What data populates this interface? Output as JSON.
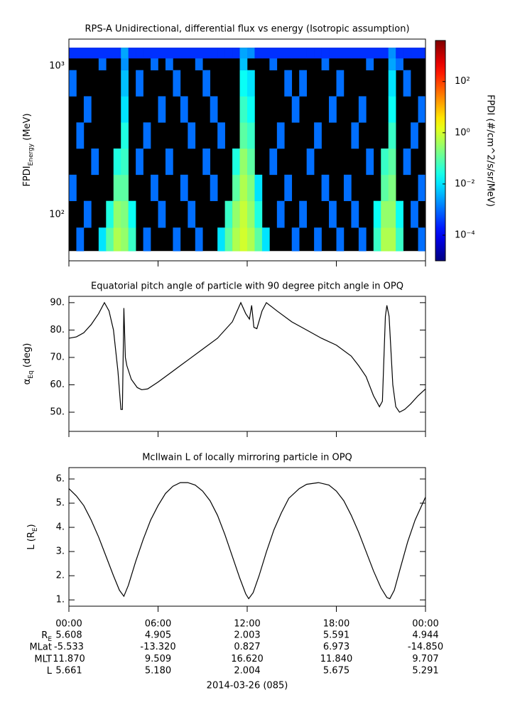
{
  "chart_data": [
    {
      "type": "heatmap",
      "title": "RPS-A Unidirectional, differential flux vs energy (Isotropic assumption)",
      "ylabel": [
        {
          "text": "FPDI"
        },
        {
          "text": "Energy",
          "sub": true
        },
        {
          "text": " (MeV)"
        }
      ],
      "xlim": [
        0,
        24
      ],
      "xticks": [
        0,
        6,
        12,
        18,
        24
      ],
      "ylim": [
        49,
        1520
      ],
      "ylog": true,
      "yticks": [
        {
          "value": 100,
          "label": "10²"
        },
        {
          "value": 1000,
          "label": "10³"
        }
      ],
      "xbins": [
        0,
        0.5,
        1,
        1.5,
        2,
        2.5,
        3,
        3.5,
        4,
        4.5,
        5,
        5.5,
        6,
        6.5,
        7,
        7.5,
        8,
        8.5,
        9,
        9.5,
        10,
        10.5,
        11,
        11.5,
        12,
        12.5,
        13,
        13.5,
        14,
        14.5,
        15,
        15.5,
        16,
        16.5,
        17,
        17.5,
        18,
        18.5,
        19,
        19.5,
        20,
        20.5,
        21,
        21.5,
        22,
        22.5,
        23,
        23.5,
        24
      ],
      "ybins": [
        57,
        82,
        124,
        186,
        279,
        418,
        627,
        940,
        1130,
        1330
      ],
      "values": [
        [
          null,
          0.001,
          null,
          null,
          0.01,
          0.1,
          0.5,
          0.3,
          0.05,
          null,
          0.001,
          null,
          null,
          null,
          0.001,
          null,
          null,
          0.001,
          null,
          null,
          0.01,
          0.1,
          0.5,
          1,
          0.5,
          0.1,
          0.01,
          null,
          null,
          null,
          0.001,
          null,
          null,
          0.001,
          null,
          null,
          0.001,
          null,
          null,
          0.001,
          null,
          0.05,
          0.5,
          0.5,
          0.05,
          null,
          null,
          0.001
        ],
        [
          null,
          null,
          0.001,
          null,
          null,
          0.03,
          0.3,
          0.2,
          0.02,
          null,
          null,
          null,
          0.001,
          null,
          null,
          null,
          0.001,
          null,
          null,
          null,
          null,
          0.05,
          0.3,
          0.8,
          0.3,
          0.03,
          null,
          null,
          0.001,
          null,
          null,
          0.001,
          null,
          null,
          null,
          0.001,
          null,
          null,
          0.001,
          null,
          null,
          0.02,
          0.3,
          0.3,
          0.02,
          null,
          0.001,
          null
        ],
        [
          0.001,
          null,
          null,
          null,
          null,
          null,
          0.1,
          0.1,
          null,
          null,
          null,
          0.001,
          null,
          null,
          null,
          0.001,
          null,
          null,
          null,
          0.001,
          null,
          null,
          0.1,
          0.5,
          0.2,
          0.01,
          null,
          null,
          null,
          0.001,
          null,
          null,
          null,
          null,
          0.001,
          null,
          null,
          0.001,
          null,
          null,
          null,
          null,
          0.1,
          0.2,
          null,
          null,
          null,
          0.001
        ],
        [
          null,
          null,
          null,
          0.001,
          null,
          null,
          0.03,
          0.05,
          null,
          0.001,
          null,
          null,
          null,
          0.001,
          null,
          null,
          null,
          null,
          0.001,
          null,
          null,
          null,
          0.03,
          0.3,
          0.1,
          null,
          null,
          0.001,
          null,
          null,
          null,
          null,
          0.001,
          null,
          null,
          null,
          null,
          null,
          null,
          null,
          0.001,
          null,
          0.05,
          0.1,
          null,
          0.001,
          null,
          null
        ],
        [
          null,
          0.001,
          null,
          null,
          null,
          null,
          null,
          0.03,
          null,
          null,
          0.001,
          null,
          null,
          null,
          null,
          null,
          0.001,
          null,
          null,
          null,
          0.001,
          null,
          null,
          0.1,
          0.05,
          null,
          null,
          null,
          0.001,
          null,
          null,
          null,
          null,
          0.001,
          null,
          null,
          null,
          null,
          0.001,
          null,
          null,
          null,
          null,
          0.05,
          null,
          null,
          0.001,
          null
        ],
        [
          null,
          null,
          0.001,
          null,
          null,
          null,
          null,
          0.01,
          null,
          null,
          null,
          null,
          0.001,
          null,
          null,
          0.001,
          null,
          null,
          null,
          0.001,
          null,
          null,
          null,
          0.05,
          0.02,
          null,
          null,
          null,
          null,
          null,
          0.001,
          null,
          null,
          null,
          null,
          0.001,
          null,
          null,
          null,
          0.001,
          null,
          null,
          null,
          0.02,
          null,
          null,
          null,
          0.001
        ],
        [
          0.001,
          null,
          null,
          null,
          null,
          null,
          null,
          0.005,
          null,
          0.001,
          null,
          null,
          null,
          null,
          0.001,
          null,
          null,
          null,
          0.001,
          null,
          null,
          null,
          null,
          0.02,
          0.01,
          null,
          null,
          null,
          null,
          0.001,
          null,
          0.001,
          null,
          null,
          null,
          null,
          0.001,
          null,
          null,
          null,
          null,
          null,
          null,
          0.01,
          null,
          0.001,
          null,
          null
        ],
        [
          null,
          null,
          null,
          null,
          0.001,
          null,
          null,
          0.002,
          null,
          null,
          null,
          0.001,
          null,
          0.001,
          null,
          null,
          null,
          0.001,
          null,
          null,
          null,
          null,
          null,
          0.005,
          null,
          null,
          null,
          0.001,
          null,
          null,
          null,
          null,
          null,
          null,
          0.001,
          null,
          null,
          null,
          null,
          null,
          0.001,
          null,
          null,
          0.003,
          0.001,
          null,
          null,
          null
        ],
        [
          0.0003,
          0.0003,
          0.0003,
          0.0003,
          0.0003,
          0.0003,
          0.0003,
          0.003,
          0.0003,
          0.0003,
          0.0003,
          0.0003,
          0.0003,
          0.0003,
          0.0003,
          0.0003,
          0.0003,
          0.0003,
          0.0003,
          0.0003,
          0.0003,
          0.0003,
          0.0003,
          0.003,
          0.002,
          0.0003,
          0.0003,
          0.0003,
          0.0003,
          0.0003,
          0.0003,
          0.0003,
          0.0003,
          0.0003,
          0.0003,
          0.0003,
          0.0003,
          0.0003,
          0.0003,
          0.0003,
          0.0003,
          0.0003,
          0.0003,
          0.002,
          0.0003,
          0.0003,
          0.0003,
          0.0003
        ]
      ],
      "colormap": "jet",
      "background": "#000000",
      "colorbar": {
        "label": "FPDI (#/cm^2/s/sr/MeV)",
        "clim": [
          1e-05,
          4000
        ],
        "log": true,
        "ticks": [
          {
            "value": 0.0001,
            "label": "10⁻⁴"
          },
          {
            "value": 0.01,
            "label": "10⁻²"
          },
          {
            "value": 1,
            "label": "10⁰"
          },
          {
            "value": 100,
            "label": "10²"
          }
        ]
      }
    },
    {
      "type": "line",
      "title": "Equatorial pitch angle of particle with 90 degree pitch angle in OPQ",
      "ylabel": [
        {
          "text": "α"
        },
        {
          "text": "Eq",
          "sub": true
        },
        {
          "text": " (deg)"
        }
      ],
      "xlim": [
        0,
        24
      ],
      "xticks": [
        0,
        6,
        12,
        18,
        24
      ],
      "ylim": [
        43,
        92.3
      ],
      "yticks": [
        {
          "value": 50,
          "label": "50."
        },
        {
          "value": 60,
          "label": "60."
        },
        {
          "value": 70,
          "label": "70."
        },
        {
          "value": 80,
          "label": "80."
        },
        {
          "value": 90,
          "label": "90."
        }
      ],
      "color": "#000000",
      "x": [
        0,
        0.5,
        1,
        1.5,
        2,
        2.39,
        2.7,
        3,
        3.3,
        3.5,
        3.6,
        3.7,
        3.8,
        3.9,
        4.2,
        4.6,
        4.9,
        5.3,
        6,
        7,
        8,
        9,
        10,
        11,
        11.57,
        11.9,
        12.15,
        12.3,
        12.45,
        12.65,
        13,
        13.29,
        14,
        15,
        16,
        17,
        18,
        19,
        19.5,
        20,
        20.5,
        20.9,
        21.1,
        21.3,
        21.4,
        21.55,
        21.8,
        22,
        22.25,
        22.6,
        23,
        23.5,
        24
      ],
      "y": [
        77,
        77.5,
        79,
        82,
        86,
        90,
        87,
        80,
        65,
        51,
        51,
        88,
        70,
        67,
        62,
        59,
        58.2,
        58.5,
        61,
        65,
        69,
        73,
        77,
        83,
        90,
        86,
        84,
        89,
        81,
        80.5,
        87,
        90,
        87,
        83,
        80,
        77,
        74.5,
        70.5,
        67,
        63,
        56,
        52,
        54,
        85,
        89,
        85,
        60,
        52,
        50,
        51,
        53,
        56,
        58.5
      ]
    },
    {
      "type": "line",
      "title": "McIlwain L of locally mirroring particle in OPQ",
      "ylabel": [
        {
          "text": "L (R"
        },
        {
          "text": "E",
          "sub": true
        },
        {
          "text": ")"
        }
      ],
      "xlim": [
        0,
        24
      ],
      "xticks": [
        {
          "value": 0,
          "label": "00:00"
        },
        {
          "value": 6,
          "label": "06:00"
        },
        {
          "value": 12,
          "label": "12:00"
        },
        {
          "value": 18,
          "label": "18:00"
        },
        {
          "value": 24,
          "label": "00:00"
        }
      ],
      "ylim": [
        0.74,
        6.47
      ],
      "yticks": [
        {
          "value": 1,
          "label": "1."
        },
        {
          "value": 2,
          "label": "2."
        },
        {
          "value": 3,
          "label": "3."
        },
        {
          "value": 4,
          "label": "4."
        },
        {
          "value": 5,
          "label": "5."
        },
        {
          "value": 6,
          "label": "6."
        }
      ],
      "color": "#000000",
      "x": [
        0,
        0.5,
        1,
        1.5,
        2,
        2.5,
        3,
        3.4,
        3.7,
        4,
        4.5,
        5,
        5.5,
        6,
        6.5,
        7,
        7.5,
        8,
        8.5,
        9,
        9.5,
        10,
        10.5,
        11,
        11.5,
        11.9,
        12.1,
        12.4,
        12.8,
        13.3,
        13.8,
        14.3,
        14.8,
        15.5,
        16,
        16.8,
        17.5,
        18,
        18.5,
        19,
        19.5,
        20,
        20.5,
        21,
        21.4,
        21.6,
        21.9,
        22.3,
        22.8,
        23.3,
        24
      ],
      "y": [
        5.6,
        5.3,
        4.9,
        4.3,
        3.6,
        2.8,
        2,
        1.4,
        1.15,
        1.6,
        2.6,
        3.5,
        4.3,
        4.9,
        5.4,
        5.7,
        5.85,
        5.85,
        5.75,
        5.5,
        5.1,
        4.5,
        3.7,
        2.8,
        1.9,
        1.25,
        1.05,
        1.3,
        2,
        3,
        3.9,
        4.6,
        5.2,
        5.6,
        5.78,
        5.85,
        5.75,
        5.5,
        5.1,
        4.5,
        3.8,
        3,
        2.2,
        1.5,
        1.1,
        1.05,
        1.4,
        2.3,
        3.4,
        4.3,
        5.25
      ]
    }
  ],
  "ephemeris": {
    "rows": [
      {
        "label": [
          {
            "text": "R"
          },
          {
            "text": "E",
            "sub": true
          }
        ],
        "values": [
          "5.608",
          "4.905",
          "2.003",
          "5.591",
          "4.944"
        ]
      },
      {
        "label": [
          {
            "text": "MLat"
          }
        ],
        "values": [
          "-5.533",
          "-13.320",
          "0.827",
          "6.973",
          "-14.850"
        ]
      },
      {
        "label": [
          {
            "text": "MLT"
          }
        ],
        "values": [
          "11.870",
          "9.509",
          "16.620",
          "11.840",
          "9.707"
        ]
      },
      {
        "label": [
          {
            "text": "L"
          }
        ],
        "values": [
          "5.661",
          "5.180",
          "2.004",
          "5.675",
          "5.291"
        ]
      }
    ],
    "date": "2014-03-26 (085)"
  }
}
